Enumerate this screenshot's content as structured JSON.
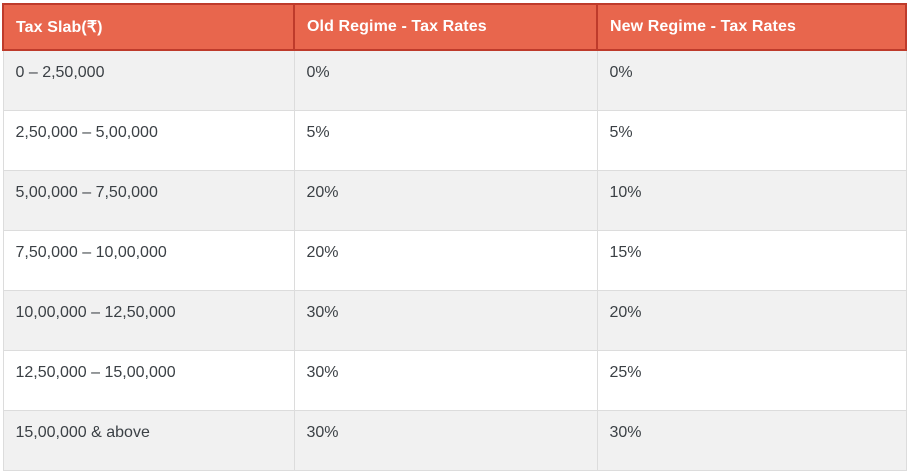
{
  "chart_data": {
    "type": "table",
    "columns": [
      "Tax Slab(₹)",
      "Old Regime - Tax Rates",
      "New Regime - Tax Rates"
    ],
    "rows": [
      [
        "0 – 2,50,000",
        "0%",
        "0%"
      ],
      [
        "2,50,000 – 5,00,000",
        "5%",
        "5%"
      ],
      [
        "5,00,000 – 7,50,000",
        "20%",
        "10%"
      ],
      [
        "7,50,000 – 10,00,000",
        "20%",
        "15%"
      ],
      [
        "10,00,000 – 12,50,000",
        "30%",
        "20%"
      ],
      [
        "12,50,000 – 15,00,000",
        "30%",
        "25%"
      ],
      [
        "15,00,000 & above",
        "30%",
        "30%"
      ]
    ]
  },
  "table": {
    "columns": [
      {
        "label": "Tax Slab(₹)"
      },
      {
        "label": "Old Regime - Tax Rates"
      },
      {
        "label": "New Regime - Tax Rates"
      }
    ],
    "rows": [
      {
        "slab": "0 – 2,50,000",
        "old_rate": "0%",
        "new_rate": "0%"
      },
      {
        "slab": "2,50,000 – 5,00,000",
        "old_rate": "5%",
        "new_rate": "5%"
      },
      {
        "slab": "5,00,000 – 7,50,000",
        "old_rate": "20%",
        "new_rate": "10%"
      },
      {
        "slab": "7,50,000 – 10,00,000",
        "old_rate": "20%",
        "new_rate": "15%"
      },
      {
        "slab": "10,00,000 – 12,50,000",
        "old_rate": "30%",
        "new_rate": "20%"
      },
      {
        "slab": "12,50,000 – 15,00,000",
        "old_rate": "30%",
        "new_rate": "25%"
      },
      {
        "slab": "15,00,000 & above",
        "old_rate": "30%",
        "new_rate": "30%"
      }
    ],
    "colors": {
      "header_bg": "#E8664D",
      "header_border": "#BE3B2B",
      "header_text": "#FFFFFF",
      "row_alt_bg": "#F1F1F1",
      "row_bg": "#FFFFFF",
      "body_border": "#DCDCDC",
      "body_text": "#3B4045"
    }
  }
}
